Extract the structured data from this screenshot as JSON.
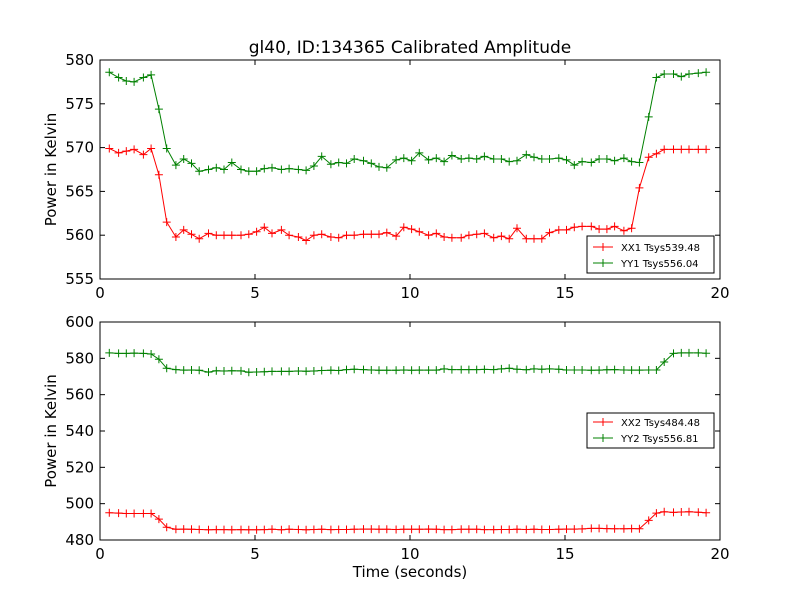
{
  "chart_data": [
    {
      "type": "line",
      "title": "gl40, ID:134365 Calibrated Amplitude",
      "xlabel": "",
      "ylabel": "Power in Kelvin",
      "xlim": [
        0,
        20
      ],
      "ylim": [
        555,
        580
      ],
      "xticks": [
        "0",
        "5",
        "10",
        "15",
        "20"
      ],
      "yticks": [
        "555",
        "560",
        "565",
        "570",
        "575",
        "580"
      ],
      "grid": false,
      "legend_position": "lower-right",
      "x": [
        0.3,
        0.6,
        0.85,
        1.1,
        1.4,
        1.65,
        1.9,
        2.15,
        2.45,
        2.7,
        2.95,
        3.2,
        3.5,
        3.75,
        4.0,
        4.25,
        4.55,
        4.8,
        5.05,
        5.3,
        5.55,
        5.85,
        6.1,
        6.4,
        6.65,
        6.9,
        7.15,
        7.45,
        7.7,
        7.95,
        8.2,
        8.5,
        8.75,
        9.0,
        9.25,
        9.55,
        9.8,
        10.05,
        10.3,
        10.6,
        10.85,
        11.1,
        11.35,
        11.65,
        11.9,
        12.15,
        12.4,
        12.7,
        12.95,
        13.2,
        13.45,
        13.75,
        14.0,
        14.25,
        14.5,
        14.8,
        15.05,
        15.3,
        15.55,
        15.85,
        16.1,
        16.35,
        16.6,
        16.9,
        17.15,
        17.4,
        17.7,
        17.95,
        18.2,
        18.5,
        18.75,
        19.0,
        19.3,
        19.55
      ],
      "series": [
        {
          "name": "XX1 Tsys539.48",
          "color": "#ff0000",
          "values": [
            569.9,
            569.4,
            569.6,
            569.8,
            569.2,
            569.9,
            566.9,
            561.5,
            559.8,
            560.6,
            560.1,
            559.6,
            560.2,
            560.0,
            560.0,
            560.0,
            560.0,
            560.1,
            560.4,
            560.9,
            560.2,
            560.6,
            560.0,
            559.8,
            559.4,
            560.0,
            560.1,
            559.8,
            559.7,
            560.0,
            560.0,
            560.1,
            560.1,
            560.1,
            560.3,
            559.9,
            560.9,
            560.7,
            560.4,
            560.0,
            560.2,
            559.8,
            559.7,
            559.7,
            560.0,
            560.1,
            560.2,
            559.7,
            559.9,
            559.6,
            560.8,
            559.6,
            559.6,
            559.6,
            560.3,
            560.6,
            560.6,
            560.9,
            561.0,
            561.0,
            560.7,
            560.7,
            561.0,
            560.5,
            560.8,
            565.4,
            568.9,
            569.3,
            569.8,
            569.8,
            569.8,
            569.8,
            569.8,
            569.8
          ]
        },
        {
          "name": "YY1 Tsys556.04",
          "color": "#008000",
          "values": [
            578.6,
            578.0,
            577.6,
            577.5,
            578.0,
            578.3,
            574.4,
            569.9,
            568.0,
            568.7,
            568.2,
            567.3,
            567.5,
            567.7,
            567.5,
            568.3,
            567.5,
            567.3,
            567.3,
            567.6,
            567.7,
            567.5,
            567.6,
            567.5,
            567.4,
            567.9,
            569.0,
            568.1,
            568.3,
            568.2,
            568.7,
            568.5,
            568.2,
            567.8,
            567.7,
            568.6,
            568.8,
            568.5,
            569.4,
            568.6,
            568.8,
            568.4,
            569.1,
            568.7,
            568.8,
            568.7,
            569.0,
            568.7,
            568.7,
            568.4,
            568.5,
            569.2,
            568.9,
            568.7,
            568.7,
            568.8,
            568.6,
            568.0,
            568.4,
            568.3,
            568.7,
            568.7,
            568.5,
            568.8,
            568.4,
            568.3,
            573.5,
            578.0,
            578.4,
            578.4,
            578.1,
            578.4,
            578.5,
            578.6
          ]
        }
      ]
    },
    {
      "type": "line",
      "title": "",
      "xlabel": "Time (seconds)",
      "ylabel": "Power in Kelvin",
      "xlim": [
        0,
        20
      ],
      "ylim": [
        480,
        600
      ],
      "xticks": [
        "0",
        "5",
        "10",
        "15",
        "20"
      ],
      "yticks": [
        "480",
        "500",
        "520",
        "540",
        "560",
        "580",
        "600"
      ],
      "grid": false,
      "legend_position": "center-right",
      "x": [
        0.3,
        0.6,
        0.85,
        1.1,
        1.4,
        1.65,
        1.9,
        2.15,
        2.45,
        2.7,
        2.95,
        3.2,
        3.5,
        3.75,
        4.0,
        4.25,
        4.55,
        4.8,
        5.05,
        5.3,
        5.55,
        5.85,
        6.1,
        6.4,
        6.65,
        6.9,
        7.15,
        7.45,
        7.7,
        7.95,
        8.2,
        8.5,
        8.75,
        9.0,
        9.25,
        9.55,
        9.8,
        10.05,
        10.3,
        10.6,
        10.85,
        11.1,
        11.35,
        11.65,
        11.9,
        12.15,
        12.4,
        12.7,
        12.95,
        13.2,
        13.45,
        13.75,
        14.0,
        14.25,
        14.5,
        14.8,
        15.05,
        15.3,
        15.55,
        15.85,
        16.1,
        16.35,
        16.6,
        16.9,
        17.15,
        17.4,
        17.7,
        17.95,
        18.2,
        18.5,
        18.75,
        19.0,
        19.3,
        19.55
      ],
      "series": [
        {
          "name": "XX2 Tsys484.48",
          "color": "#ff0000",
          "values": [
            495.0,
            494.8,
            494.6,
            494.6,
            494.6,
            494.6,
            491.5,
            487.0,
            485.9,
            486.0,
            485.9,
            485.8,
            485.6,
            485.7,
            485.7,
            485.6,
            485.7,
            485.6,
            485.6,
            485.7,
            485.9,
            485.6,
            485.9,
            485.8,
            485.6,
            485.8,
            485.9,
            485.7,
            485.8,
            485.8,
            485.9,
            486.0,
            486.0,
            485.9,
            485.9,
            485.8,
            485.9,
            485.9,
            485.9,
            486.0,
            485.9,
            485.7,
            485.7,
            485.9,
            485.9,
            485.9,
            485.7,
            485.7,
            485.8,
            485.8,
            485.9,
            485.8,
            485.9,
            485.8,
            485.8,
            485.9,
            486.0,
            486.0,
            486.1,
            486.4,
            486.4,
            486.3,
            486.2,
            486.2,
            486.3,
            486.2,
            490.8,
            494.8,
            495.5,
            495.2,
            495.4,
            495.5,
            495.3,
            495.0
          ]
        },
        {
          "name": "YY2 Tsys556.81",
          "color": "#008000",
          "values": [
            583.0,
            582.7,
            582.7,
            582.9,
            582.7,
            582.4,
            579.5,
            574.5,
            573.8,
            573.5,
            573.6,
            573.4,
            572.4,
            573.2,
            573.0,
            573.2,
            573.1,
            572.3,
            572.5,
            572.6,
            572.8,
            572.8,
            572.8,
            573.0,
            572.9,
            573.0,
            573.3,
            573.4,
            573.3,
            573.8,
            574.0,
            573.8,
            573.6,
            573.4,
            573.4,
            573.4,
            573.6,
            573.4,
            573.5,
            573.5,
            573.5,
            574.2,
            573.8,
            573.8,
            573.8,
            573.8,
            573.9,
            573.8,
            574.2,
            574.5,
            574.0,
            573.7,
            574.2,
            574.0,
            574.2,
            574.0,
            573.6,
            573.6,
            573.6,
            573.4,
            573.5,
            573.7,
            573.8,
            573.6,
            573.5,
            573.5,
            573.6,
            573.6,
            578.0,
            582.7,
            583.0,
            583.0,
            583.0,
            582.8
          ]
        }
      ]
    }
  ]
}
